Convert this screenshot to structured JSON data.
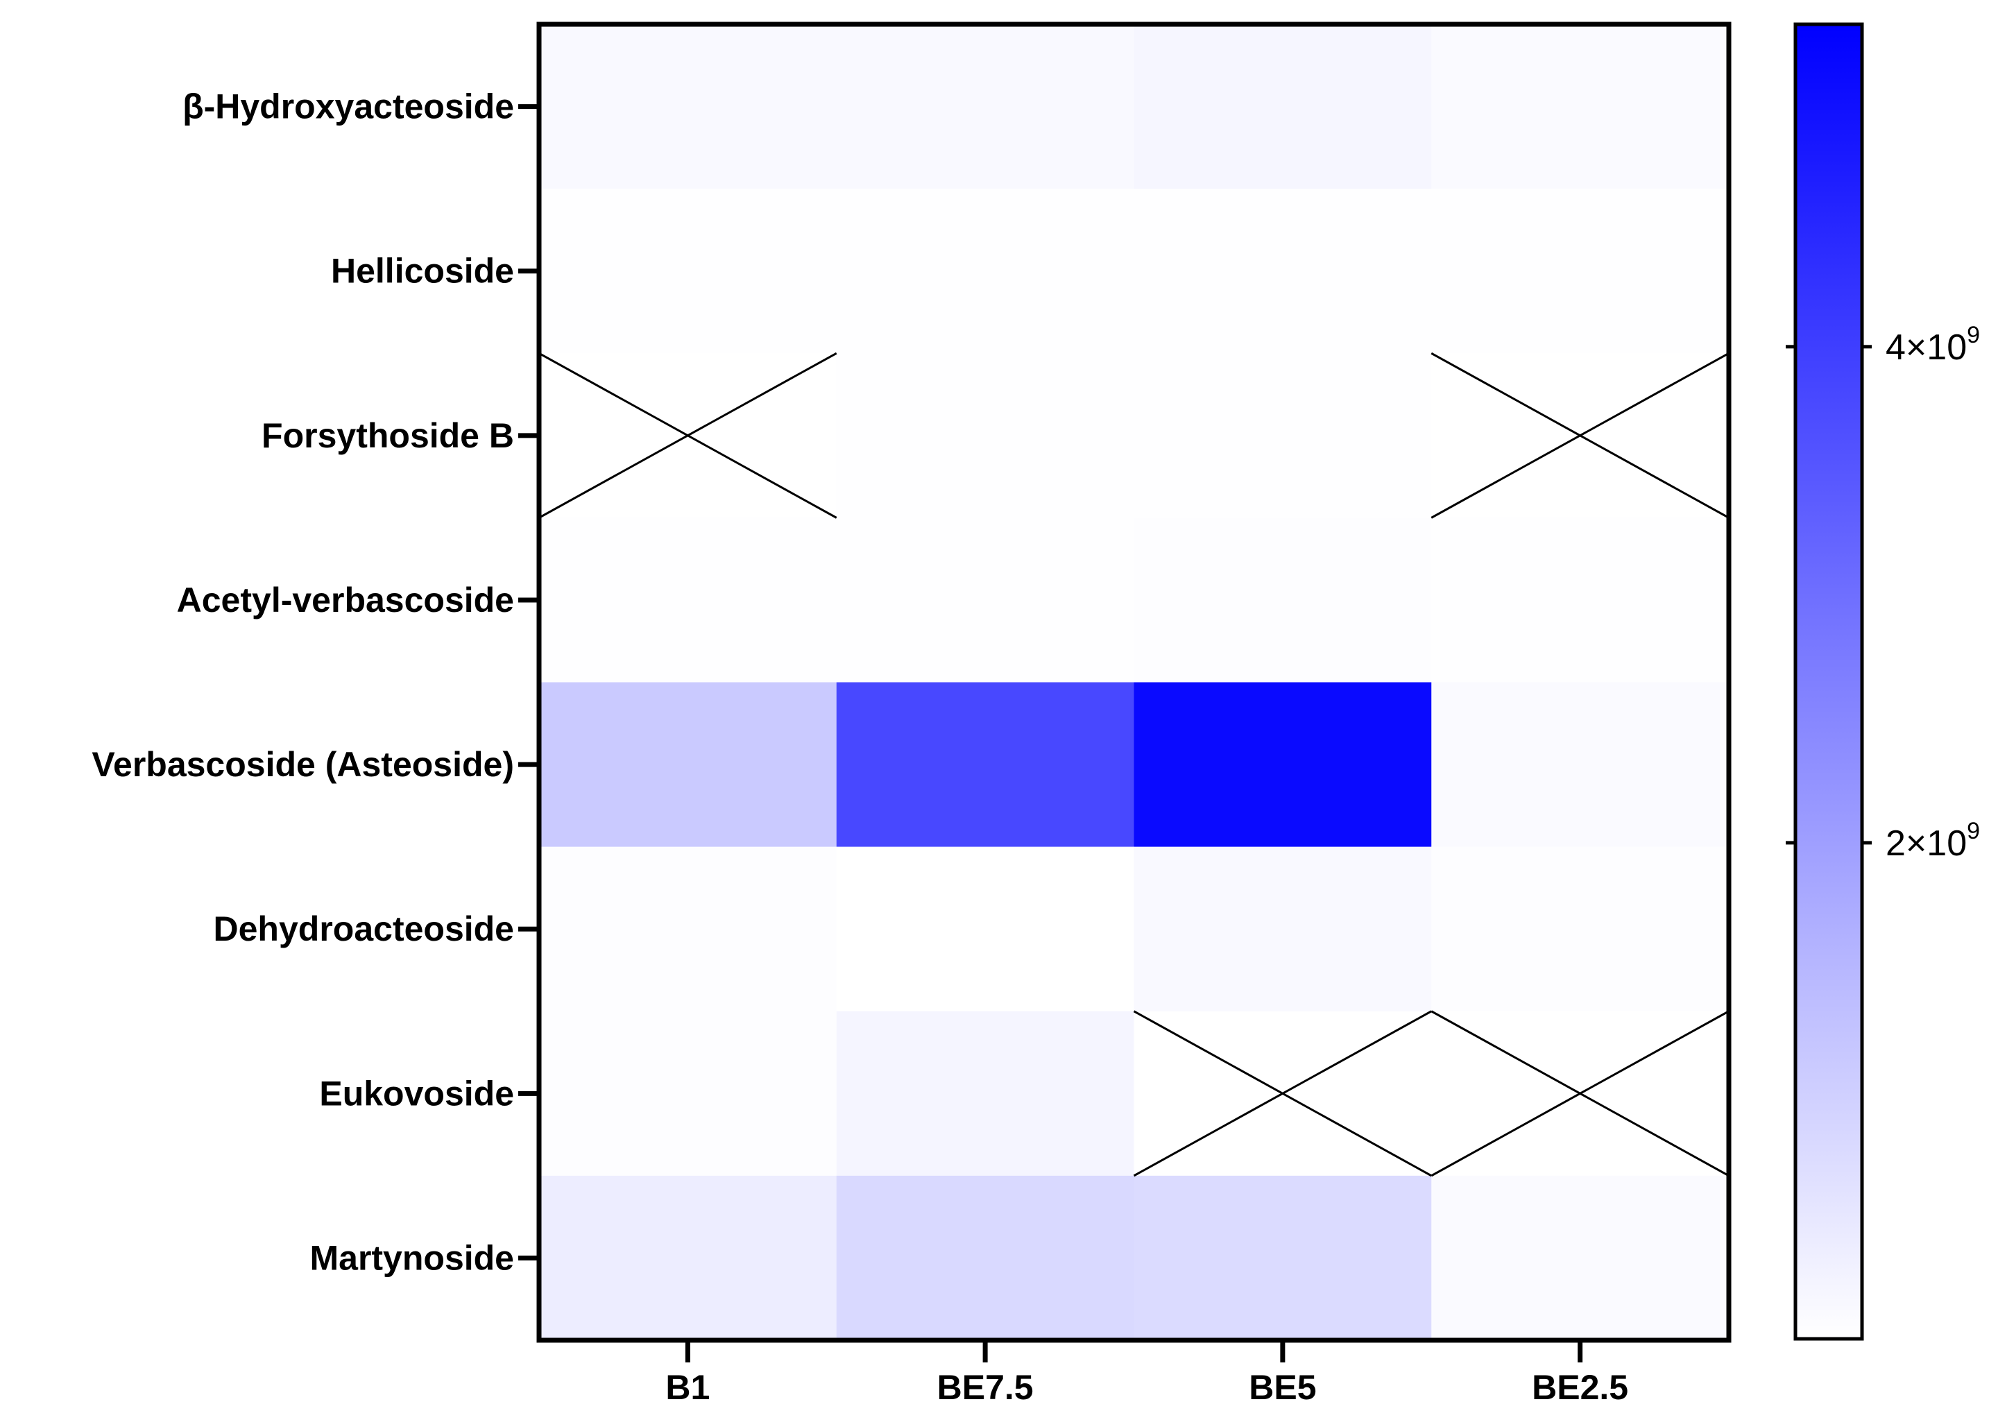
{
  "chart_data": {
    "type": "heatmap",
    "title": "",
    "xlabel": "",
    "ylabel": "",
    "columns": [
      "B1",
      "BE7.5",
      "BE5",
      "BE2.5"
    ],
    "rows": [
      "β-Hydroxyacteoside",
      "Hellicoside",
      "Forsythoside B",
      "Acetyl-verbascoside",
      "Verbascoside (Asteoside)",
      "Dehydroacteoside",
      "Eukovoside",
      "Martynoside"
    ],
    "values": [
      [
        120000000.0,
        120000000.0,
        180000000.0,
        100000000.0
      ],
      [
        20000000.0,
        20000000.0,
        30000000.0,
        20000000.0
      ],
      [
        null,
        20000000.0,
        30000000.0,
        null
      ],
      [
        20000000.0,
        20000000.0,
        40000000.0,
        30000000.0
      ],
      [
        1100000000.0,
        3800000000.0,
        5100000000.0,
        110000000.0
      ],
      [
        40000000.0,
        10000000.0,
        120000000.0,
        50000000.0
      ],
      [
        40000000.0,
        200000000.0,
        null,
        null
      ],
      [
        380000000.0,
        780000000.0,
        750000000.0,
        100000000.0
      ]
    ],
    "missing_marker": "X (no data)",
    "colorbar": {
      "min": 0,
      "max": 5300000000.0,
      "color_low": "#ffffff",
      "color_high": "#0000ff",
      "ticks": [
        {
          "value": 2000000000.0,
          "mantissa": "2×10",
          "exponent": "9"
        },
        {
          "value": 4000000000.0,
          "mantissa": "4×10",
          "exponent": "9"
        }
      ]
    }
  }
}
